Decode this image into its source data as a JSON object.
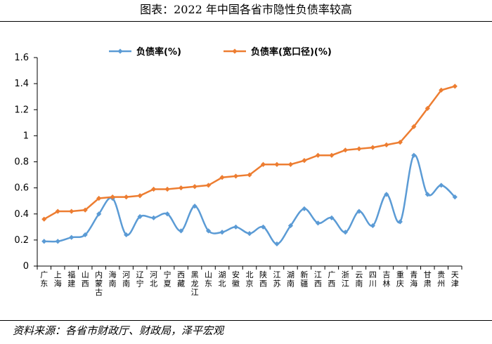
{
  "header": {
    "title": "图表：2022 年中国各省市隐性负债率较高"
  },
  "footer": {
    "source": "资料来源：各省市财政厅、财政局，泽平宏观"
  },
  "colors": {
    "series1": "#5b9bd5",
    "series2": "#ed7d31",
    "axis": "#000000"
  },
  "chart_data": {
    "type": "line",
    "title": "图表：2022 年中国各省市隐性负债率较高",
    "xlabel": "",
    "ylabel": "",
    "ylim": [
      0,
      1.6
    ],
    "yticks": [
      0,
      0.2,
      0.4,
      0.6,
      0.8,
      1,
      1.2,
      1.4,
      1.6
    ],
    "ytick_labels": [
      "0",
      "0.2",
      "0.4",
      "0.6",
      "0.8",
      "1",
      "1.2",
      "1.4",
      "1.6"
    ],
    "legend_position": "top",
    "grid": false,
    "categories": [
      "广东",
      "上海",
      "福建",
      "山西",
      "内蒙古",
      "海南",
      "河南",
      "辽宁",
      "河北",
      "宁夏",
      "西藏",
      "黑龙江",
      "山东",
      "湖北",
      "安徽",
      "北京",
      "陕西",
      "江苏",
      "湖南",
      "新疆",
      "江西",
      "广西",
      "浙江",
      "云南",
      "四川",
      "吉林",
      "重庆",
      "青海",
      "甘肃",
      "贵州",
      "天津"
    ],
    "series": [
      {
        "name": "负债率(%)",
        "values": [
          0.19,
          0.19,
          0.22,
          0.24,
          0.4,
          0.52,
          0.24,
          0.38,
          0.37,
          0.4,
          0.27,
          0.46,
          0.27,
          0.26,
          0.3,
          0.25,
          0.3,
          0.17,
          0.31,
          0.44,
          0.33,
          0.37,
          0.26,
          0.42,
          0.31,
          0.55,
          0.34,
          0.85,
          0.55,
          0.62,
          0.53
        ]
      },
      {
        "name": "负债率(宽口径)(%)",
        "values": [
          0.36,
          0.42,
          0.42,
          0.43,
          0.52,
          0.53,
          0.53,
          0.54,
          0.59,
          0.59,
          0.6,
          0.61,
          0.62,
          0.68,
          0.69,
          0.7,
          0.78,
          0.78,
          0.78,
          0.81,
          0.85,
          0.85,
          0.89,
          0.9,
          0.91,
          0.93,
          0.95,
          1.07,
          1.21,
          1.35,
          1.38
        ]
      }
    ]
  }
}
